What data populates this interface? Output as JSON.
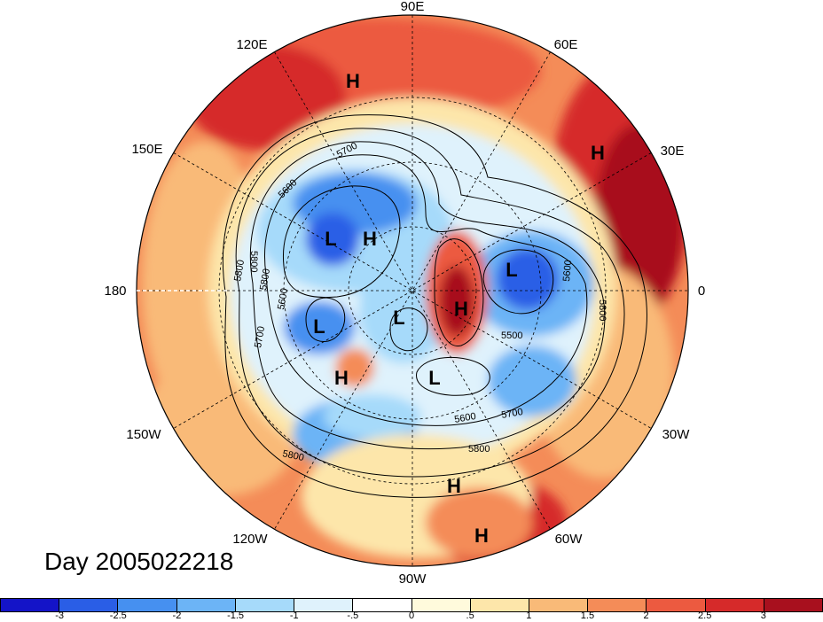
{
  "map": {
    "title": "Day 2005022218",
    "longitude_labels": [
      "90E",
      "60E",
      "30E",
      "0",
      "30W",
      "60W",
      "90W",
      "120W",
      "150W",
      "180",
      "150E",
      "120E"
    ],
    "pressure_centers": [
      {
        "label": "H"
      },
      {
        "label": "H"
      },
      {
        "label": "L"
      },
      {
        "label": "H"
      },
      {
        "label": "L"
      },
      {
        "label": "H"
      },
      {
        "label": "L"
      },
      {
        "label": "L"
      },
      {
        "label": "H"
      },
      {
        "label": "L"
      },
      {
        "label": "H"
      },
      {
        "label": "H"
      }
    ],
    "contour_labels": [
      "5700",
      "5600",
      "5800",
      "5800",
      "5600",
      "5700",
      "5600",
      "5800",
      "5800",
      "5500",
      "5600",
      "5700",
      "5800",
      "5800"
    ],
    "colors": {
      "neg3": "#1414c8",
      "neg25": "#2a5ee6",
      "neg2": "#4690f0",
      "neg15": "#6cb4f6",
      "neg1": "#a6dafa",
      "neg05": "#dff2fc",
      "pos0": "#fffadc",
      "pos05": "#fde6aa",
      "pos1": "#f9ba78",
      "pos15": "#f48c58",
      "pos2": "#ec5a40",
      "pos25": "#d62a2a",
      "pos3": "#a8101e"
    }
  },
  "colorbar": {
    "ticks": [
      "-3",
      "-2.5",
      "-2",
      "-1.5",
      "-1",
      "-.5",
      "0",
      ".5",
      "1",
      "1.5",
      "2",
      "2.5",
      "3"
    ],
    "colors": [
      "#1414c8",
      "#2a5ee6",
      "#4690f0",
      "#6cb4f6",
      "#a6dafa",
      "#dff2fc",
      "#ffffff",
      "#fffadc",
      "#fde6aa",
      "#f9ba78",
      "#f48c58",
      "#ec5a40",
      "#d62a2a",
      "#a8101e"
    ]
  }
}
